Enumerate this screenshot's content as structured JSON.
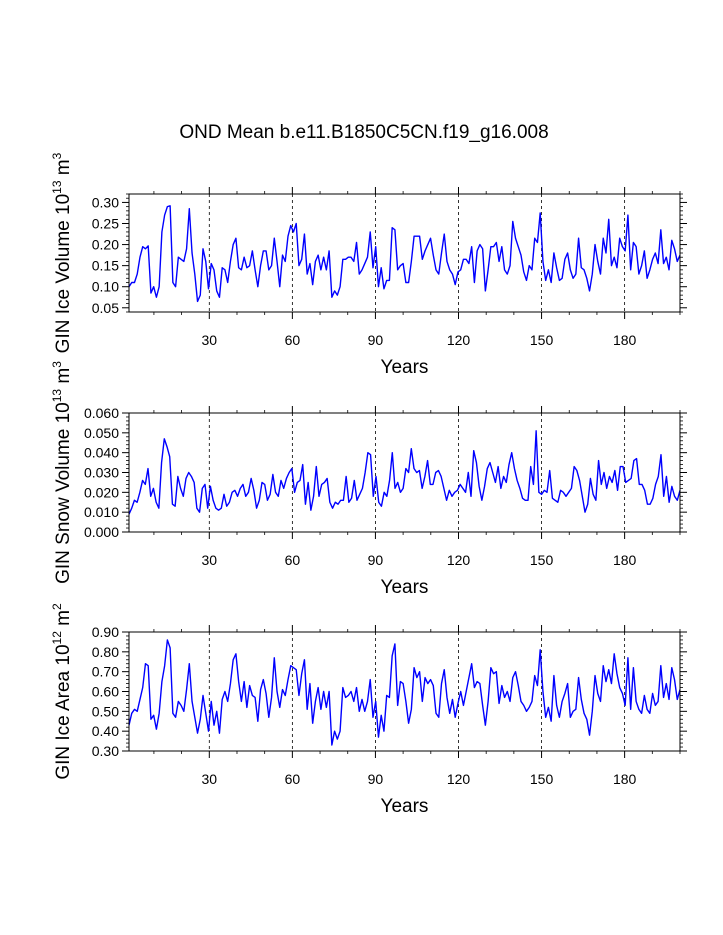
{
  "colors": {
    "series": "#0000ff",
    "axis": "#000000",
    "grid": "#000000",
    "background": "#ffffff"
  },
  "page_title": "OND Mean b.e11.B1850C5CN.f19_g16.008",
  "chart_data": [
    {
      "type": "line",
      "title": "OND Mean b.e11.B1850C5CN.f19_g16.008",
      "xlabel": "Years",
      "ylabel_main": "GIN Ice Volume 10",
      "ylabel_sup": "13",
      "ylabel_unit": " m",
      "ylabel_unit_sup": "3",
      "xlim": [
        1,
        200
      ],
      "ylim": [
        0.04,
        0.32
      ],
      "yticks": [
        0.05,
        0.1,
        0.15,
        0.2,
        0.25,
        0.3
      ],
      "ytick_labels": [
        "0.05",
        "0.10",
        "0.15",
        "0.20",
        "0.25",
        "0.30"
      ],
      "xticks": [
        30,
        60,
        90,
        120,
        150,
        180
      ],
      "xtick_labels": [
        "30",
        "60",
        "90",
        "120",
        "150",
        "180"
      ],
      "grid": "vertical dashed at x ticks",
      "series": [
        {
          "name": "GIN Ice Volume",
          "values": [
            0.1,
            0.11,
            0.11,
            0.13,
            0.17,
            0.195,
            0.19,
            0.197,
            0.085,
            0.1,
            0.075,
            0.1,
            0.23,
            0.27,
            0.29,
            0.292,
            0.11,
            0.1,
            0.17,
            0.165,
            0.16,
            0.19,
            0.285,
            0.18,
            0.13,
            0.065,
            0.08,
            0.19,
            0.16,
            0.095,
            0.155,
            0.14,
            0.09,
            0.075,
            0.145,
            0.14,
            0.11,
            0.16,
            0.2,
            0.215,
            0.145,
            0.14,
            0.17,
            0.145,
            0.15,
            0.185,
            0.14,
            0.1,
            0.15,
            0.185,
            0.185,
            0.14,
            0.15,
            0.215,
            0.16,
            0.1,
            0.175,
            0.16,
            0.22,
            0.245,
            0.23,
            0.25,
            0.15,
            0.165,
            0.225,
            0.13,
            0.155,
            0.105,
            0.16,
            0.175,
            0.14,
            0.17,
            0.14,
            0.185,
            0.075,
            0.09,
            0.08,
            0.1,
            0.165,
            0.165,
            0.17,
            0.17,
            0.16,
            0.205,
            0.13,
            0.14,
            0.155,
            0.17,
            0.23,
            0.145,
            0.195,
            0.1,
            0.145,
            0.095,
            0.115,
            0.115,
            0.24,
            0.235,
            0.14,
            0.15,
            0.155,
            0.11,
            0.11,
            0.16,
            0.22,
            0.22,
            0.22,
            0.165,
            0.185,
            0.2,
            0.215,
            0.175,
            0.14,
            0.13,
            0.18,
            0.225,
            0.16,
            0.14,
            0.13,
            0.105,
            0.135,
            0.14,
            0.165,
            0.165,
            0.155,
            0.195,
            0.11,
            0.185,
            0.2,
            0.19,
            0.09,
            0.14,
            0.195,
            0.195,
            0.205,
            0.16,
            0.195,
            0.14,
            0.13,
            0.15,
            0.255,
            0.215,
            0.195,
            0.175,
            0.135,
            0.115,
            0.15,
            0.14,
            0.215,
            0.205,
            0.275,
            0.16,
            0.115,
            0.14,
            0.11,
            0.18,
            0.145,
            0.115,
            0.12,
            0.165,
            0.18,
            0.14,
            0.12,
            0.13,
            0.215,
            0.145,
            0.14,
            0.12,
            0.09,
            0.13,
            0.2,
            0.16,
            0.13,
            0.215,
            0.18,
            0.26,
            0.15,
            0.17,
            0.145,
            0.215,
            0.195,
            0.185,
            0.27,
            0.14,
            0.205,
            0.195,
            0.13,
            0.15,
            0.185,
            0.12,
            0.14,
            0.165,
            0.18,
            0.155,
            0.235,
            0.155,
            0.17,
            0.14,
            0.21,
            0.19,
            0.16,
            0.175
          ]
        }
      ]
    },
    {
      "type": "line",
      "xlabel": "Years",
      "ylabel_main": "GIN Snow Volume 10",
      "ylabel_sup": "13",
      "ylabel_unit": " m",
      "ylabel_unit_sup": "3",
      "xlim": [
        1,
        200
      ],
      "ylim": [
        0.0,
        0.06
      ],
      "yticks": [
        0.0,
        0.01,
        0.02,
        0.03,
        0.04,
        0.05,
        0.06
      ],
      "ytick_labels": [
        "0.000",
        "0.010",
        "0.020",
        "0.030",
        "0.040",
        "0.050",
        "0.060"
      ],
      "xticks": [
        30,
        60,
        90,
        120,
        150,
        180
      ],
      "xtick_labels": [
        "30",
        "60",
        "90",
        "120",
        "150",
        "180"
      ],
      "grid": "vertical dashed at x ticks",
      "series": [
        {
          "name": "GIN Snow Volume",
          "values": [
            0.009,
            0.012,
            0.016,
            0.015,
            0.02,
            0.026,
            0.024,
            0.032,
            0.018,
            0.022,
            0.015,
            0.012,
            0.035,
            0.047,
            0.043,
            0.038,
            0.014,
            0.013,
            0.028,
            0.022,
            0.018,
            0.027,
            0.03,
            0.028,
            0.025,
            0.012,
            0.01,
            0.022,
            0.024,
            0.012,
            0.023,
            0.016,
            0.012,
            0.011,
            0.012,
            0.019,
            0.013,
            0.015,
            0.02,
            0.021,
            0.018,
            0.022,
            0.024,
            0.018,
            0.02,
            0.027,
            0.021,
            0.012,
            0.016,
            0.025,
            0.024,
            0.016,
            0.019,
            0.029,
            0.02,
            0.018,
            0.026,
            0.022,
            0.027,
            0.03,
            0.032,
            0.02,
            0.025,
            0.026,
            0.034,
            0.014,
            0.025,
            0.011,
            0.018,
            0.033,
            0.018,
            0.024,
            0.025,
            0.027,
            0.015,
            0.012,
            0.015,
            0.014,
            0.016,
            0.016,
            0.028,
            0.015,
            0.017,
            0.026,
            0.016,
            0.019,
            0.022,
            0.03,
            0.04,
            0.039,
            0.018,
            0.028,
            0.015,
            0.013,
            0.02,
            0.018,
            0.026,
            0.04,
            0.022,
            0.025,
            0.02,
            0.022,
            0.032,
            0.03,
            0.042,
            0.032,
            0.03,
            0.031,
            0.022,
            0.028,
            0.036,
            0.024,
            0.024,
            0.03,
            0.031,
            0.028,
            0.022,
            0.016,
            0.021,
            0.018,
            0.02,
            0.021,
            0.024,
            0.022,
            0.02,
            0.03,
            0.018,
            0.041,
            0.035,
            0.023,
            0.016,
            0.023,
            0.032,
            0.035,
            0.03,
            0.025,
            0.033,
            0.022,
            0.028,
            0.025,
            0.034,
            0.04,
            0.032,
            0.026,
            0.022,
            0.017,
            0.016,
            0.016,
            0.033,
            0.024,
            0.051,
            0.02,
            0.019,
            0.021,
            0.02,
            0.031,
            0.017,
            0.016,
            0.015,
            0.021,
            0.02,
            0.018,
            0.02,
            0.022,
            0.033,
            0.031,
            0.026,
            0.018,
            0.01,
            0.014,
            0.027,
            0.019,
            0.016,
            0.036,
            0.024,
            0.03,
            0.022,
            0.028,
            0.025,
            0.031,
            0.021,
            0.033,
            0.033,
            0.025,
            0.026,
            0.027,
            0.036,
            0.037,
            0.024,
            0.024,
            0.021,
            0.014,
            0.014,
            0.017,
            0.024,
            0.028,
            0.039,
            0.018,
            0.028,
            0.015,
            0.023,
            0.018,
            0.016,
            0.021
          ]
        }
      ]
    },
    {
      "type": "line",
      "xlabel": "Years",
      "ylabel_main": "GIN Ice Area 10",
      "ylabel_sup": "12",
      "ylabel_unit": " m",
      "ylabel_unit_sup": "2",
      "xlim": [
        1,
        200
      ],
      "ylim": [
        0.3,
        0.9
      ],
      "yticks": [
        0.3,
        0.4,
        0.5,
        0.6,
        0.7,
        0.8,
        0.9
      ],
      "ytick_labels": [
        "0.30",
        "0.40",
        "0.50",
        "0.60",
        "0.70",
        "0.80",
        "0.90"
      ],
      "xticks": [
        30,
        60,
        90,
        120,
        150,
        180
      ],
      "xtick_labels": [
        "30",
        "60",
        "90",
        "120",
        "150",
        "180"
      ],
      "grid": "vertical dashed at x ticks",
      "series": [
        {
          "name": "GIN Ice Area",
          "values": [
            0.43,
            0.49,
            0.51,
            0.5,
            0.56,
            0.62,
            0.74,
            0.73,
            0.46,
            0.48,
            0.41,
            0.49,
            0.65,
            0.73,
            0.86,
            0.82,
            0.49,
            0.47,
            0.55,
            0.53,
            0.5,
            0.61,
            0.74,
            0.55,
            0.47,
            0.39,
            0.46,
            0.58,
            0.49,
            0.4,
            0.55,
            0.43,
            0.5,
            0.39,
            0.56,
            0.6,
            0.55,
            0.64,
            0.76,
            0.79,
            0.65,
            0.55,
            0.65,
            0.52,
            0.63,
            0.58,
            0.57,
            0.45,
            0.61,
            0.66,
            0.59,
            0.47,
            0.57,
            0.77,
            0.6,
            0.52,
            0.61,
            0.58,
            0.66,
            0.73,
            0.72,
            0.71,
            0.58,
            0.69,
            0.76,
            0.51,
            0.64,
            0.44,
            0.55,
            0.62,
            0.51,
            0.6,
            0.52,
            0.6,
            0.33,
            0.4,
            0.36,
            0.4,
            0.62,
            0.57,
            0.58,
            0.6,
            0.55,
            0.62,
            0.5,
            0.56,
            0.5,
            0.55,
            0.66,
            0.47,
            0.55,
            0.37,
            0.48,
            0.4,
            0.58,
            0.57,
            0.78,
            0.84,
            0.53,
            0.65,
            0.64,
            0.55,
            0.44,
            0.51,
            0.72,
            0.67,
            0.7,
            0.55,
            0.67,
            0.64,
            0.66,
            0.63,
            0.49,
            0.47,
            0.64,
            0.71,
            0.57,
            0.49,
            0.56,
            0.47,
            0.54,
            0.6,
            0.53,
            0.6,
            0.67,
            0.74,
            0.62,
            0.65,
            0.64,
            0.53,
            0.43,
            0.55,
            0.72,
            0.69,
            0.7,
            0.54,
            0.63,
            0.57,
            0.6,
            0.55,
            0.67,
            0.7,
            0.63,
            0.55,
            0.53,
            0.5,
            0.52,
            0.55,
            0.68,
            0.63,
            0.81,
            0.6,
            0.47,
            0.52,
            0.45,
            0.68,
            0.53,
            0.47,
            0.55,
            0.59,
            0.64,
            0.47,
            0.5,
            0.51,
            0.67,
            0.56,
            0.49,
            0.46,
            0.38,
            0.5,
            0.68,
            0.59,
            0.55,
            0.73,
            0.65,
            0.71,
            0.64,
            0.79,
            0.69,
            0.62,
            0.59,
            0.53,
            0.77,
            0.51,
            0.72,
            0.55,
            0.51,
            0.49,
            0.58,
            0.51,
            0.49,
            0.59,
            0.53,
            0.55,
            0.73,
            0.57,
            0.64,
            0.56,
            0.72,
            0.66,
            0.56,
            0.61
          ]
        }
      ]
    }
  ]
}
